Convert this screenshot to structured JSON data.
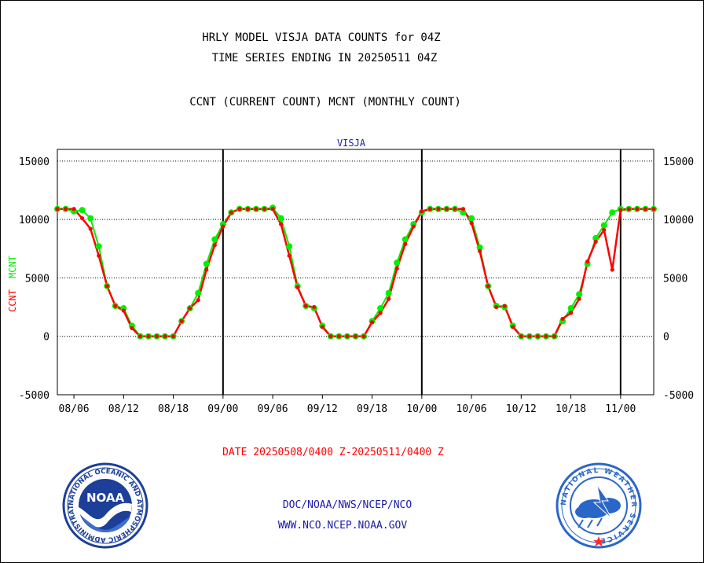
{
  "header": {
    "title_line1": "HRLY MODEL VISJA DATA COUNTS for 04Z",
    "title_line2": "TIME SERIES ENDING IN 20250511 04Z",
    "subtitle": "CCNT (CURRENT COUNT) MCNT (MONTHLY COUNT)"
  },
  "footer": {
    "date_range": "DATE 20250508/0400 Z-20250511/0400 Z",
    "org_line": "DOC/NOAA/NWS/NCEP/NCO",
    "url_line": "WWW.NCO.NCEP.NOAA.GOV"
  },
  "logos": {
    "left_name": "noaa-logo",
    "left_text": "NOAA",
    "left_ring_text": "NATIONAL OCEANIC AND ATMOSPHERIC ADMINISTRATION · U.S. DEPARTMENT OF COMMERCE",
    "right_name": "nws-logo",
    "right_ring_text": "NATIONAL WEATHER SERVICE"
  },
  "colors": {
    "ccnt": "#ff0000",
    "mcnt": "#00ee00",
    "text_blue": "#1a1aa8",
    "noaa_blue": "#1c3f99",
    "nws_blue": "#2a66c8"
  },
  "chart_data": {
    "type": "line",
    "title": "VISJA",
    "ylabel_left_parts": [
      "CCNT",
      "MCNT"
    ],
    "ylim": [
      -5000,
      16000
    ],
    "y_ticks": [
      -5000,
      0,
      5000,
      10000,
      15000
    ],
    "y_tick_labels": [
      "-5000",
      "0",
      "5000",
      "10000",
      "15000"
    ],
    "y_grid_dotted": true,
    "xlim": [
      4,
      76
    ],
    "x_tick_positions": [
      6,
      12,
      18,
      24,
      30,
      36,
      42,
      48,
      54,
      60,
      66,
      72
    ],
    "x_tick_labels": [
      "08/06",
      "08/12",
      "08/18",
      "09/00",
      "09/06",
      "09/12",
      "09/18",
      "10/00",
      "10/06",
      "10/12",
      "10/18",
      "11/00"
    ],
    "day_boundaries": [
      24,
      48,
      72
    ],
    "series": [
      {
        "name": "CCNT",
        "color": "#ff0000",
        "x": [
          4,
          5,
          6,
          7,
          8,
          9,
          10,
          11,
          12,
          13,
          14,
          15,
          16,
          17,
          18,
          19,
          20,
          21,
          22,
          23,
          24,
          25,
          26,
          27,
          28,
          29,
          30,
          31,
          32,
          33,
          34,
          35,
          36,
          37,
          38,
          39,
          40,
          41,
          42,
          43,
          44,
          45,
          46,
          47,
          48,
          49,
          50,
          51,
          52,
          53,
          54,
          55,
          56,
          57,
          58,
          59,
          60,
          61,
          62,
          63,
          64,
          65,
          66,
          67,
          68,
          69,
          70,
          71,
          72,
          73,
          74,
          75,
          76
        ],
        "values": [
          10900,
          10900,
          10900,
          10100,
          9200,
          6900,
          4300,
          2600,
          2200,
          700,
          0,
          0,
          0,
          0,
          0,
          1300,
          2400,
          3100,
          5700,
          7800,
          9400,
          10600,
          10900,
          10900,
          10900,
          10900,
          10900,
          9600,
          6900,
          4200,
          2600,
          2500,
          800,
          0,
          0,
          0,
          0,
          0,
          1200,
          2000,
          3200,
          5800,
          7900,
          9400,
          10700,
          10900,
          10900,
          10900,
          10900,
          10900,
          9700,
          7300,
          4300,
          2500,
          2600,
          800,
          0,
          0,
          0,
          0,
          0,
          1500,
          2000,
          3200,
          6400,
          8100,
          9100,
          5700,
          10800,
          10900,
          10900,
          10900,
          10900
        ]
      },
      {
        "name": "MCNT",
        "color": "#00ee00",
        "x": [
          4,
          5,
          6,
          7,
          8,
          9,
          10,
          11,
          12,
          13,
          14,
          15,
          16,
          17,
          18,
          19,
          20,
          21,
          22,
          23,
          24,
          25,
          26,
          27,
          28,
          29,
          30,
          31,
          32,
          33,
          34,
          35,
          36,
          37,
          38,
          39,
          40,
          41,
          42,
          43,
          44,
          45,
          46,
          47,
          48,
          49,
          50,
          51,
          52,
          53,
          54,
          55,
          56,
          57,
          58,
          59,
          60,
          61,
          62,
          63,
          64,
          65,
          66,
          67,
          68,
          69,
          70,
          71,
          72,
          73,
          74,
          75,
          76
        ],
        "values": [
          10900,
          10900,
          10700,
          10800,
          10100,
          7700,
          4300,
          2600,
          2400,
          900,
          0,
          0,
          0,
          0,
          0,
          1300,
          2400,
          3700,
          6200,
          8300,
          9600,
          10600,
          10900,
          10900,
          10900,
          10900,
          11000,
          10100,
          7700,
          4300,
          2600,
          2400,
          900,
          0,
          0,
          0,
          0,
          0,
          1300,
          2400,
          3700,
          6300,
          8300,
          9600,
          10600,
          10900,
          10900,
          10900,
          10900,
          10600,
          10100,
          7600,
          4300,
          2600,
          2500,
          900,
          0,
          0,
          0,
          0,
          0,
          1300,
          2400,
          3600,
          6200,
          8400,
          9500,
          10600,
          10900,
          10900,
          10900,
          10900,
          10900
        ]
      }
    ]
  }
}
